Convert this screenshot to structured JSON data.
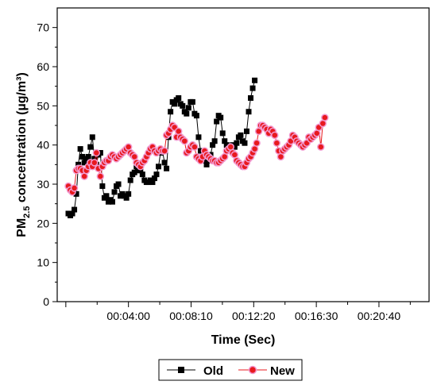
{
  "chart_data": {
    "type": "line",
    "xlabel": "Time (Sec)",
    "ylabel_main": "PM",
    "ylabel_sub": "2.5",
    "ylabel_rest": " concentration (µg/m³)",
    "x_unit": "seconds",
    "xlim": [
      0,
      1440
    ],
    "ylim": [
      0,
      75
    ],
    "yticks": [
      0,
      10,
      20,
      30,
      40,
      50,
      60,
      70
    ],
    "xticks": [
      {
        "value": 240,
        "label": "00:04:00"
      },
      {
        "value": 490,
        "label": "00:08:10"
      },
      {
        "value": 740,
        "label": "00:12:20"
      },
      {
        "value": 990,
        "label": "00:16:30"
      },
      {
        "value": 1240,
        "label": "00:20:40"
      }
    ],
    "legend": {
      "placement": "bottom-center"
    },
    "series": [
      {
        "name": "Old",
        "color": "#000000",
        "marker": "square",
        "points": [
          [
            0,
            22.5
          ],
          [
            8,
            22.0
          ],
          [
            16,
            22.5
          ],
          [
            24,
            23.5
          ],
          [
            32,
            27.5
          ],
          [
            40,
            35.0
          ],
          [
            48,
            39.0
          ],
          [
            56,
            37.0
          ],
          [
            64,
            35.5
          ],
          [
            72,
            36.5
          ],
          [
            80,
            37.0
          ],
          [
            88,
            39.5
          ],
          [
            96,
            42.0
          ],
          [
            104,
            36.5
          ],
          [
            112,
            35.0
          ],
          [
            120,
            37.5
          ],
          [
            128,
            38.0
          ],
          [
            136,
            29.5
          ],
          [
            144,
            26.5
          ],
          [
            152,
            27.0
          ],
          [
            160,
            25.5
          ],
          [
            168,
            26.0
          ],
          [
            176,
            25.5
          ],
          [
            184,
            28.0
          ],
          [
            192,
            29.5
          ],
          [
            200,
            30.0
          ],
          [
            208,
            27.0
          ],
          [
            216,
            27.5
          ],
          [
            224,
            27.0
          ],
          [
            232,
            26.5
          ],
          [
            240,
            27.5
          ],
          [
            248,
            31.0
          ],
          [
            256,
            32.5
          ],
          [
            264,
            33.0
          ],
          [
            272,
            34.5
          ],
          [
            280,
            33.5
          ],
          [
            288,
            33.5
          ],
          [
            296,
            32.5
          ],
          [
            304,
            31.0
          ],
          [
            312,
            30.5
          ],
          [
            320,
            30.5
          ],
          [
            328,
            31.0
          ],
          [
            336,
            30.5
          ],
          [
            344,
            31.5
          ],
          [
            352,
            32.5
          ],
          [
            360,
            34.5
          ],
          [
            368,
            38.0
          ],
          [
            376,
            38.5
          ],
          [
            384,
            35.5
          ],
          [
            392,
            34.0
          ],
          [
            400,
            42.0
          ],
          [
            408,
            48.5
          ],
          [
            416,
            51.0
          ],
          [
            424,
            50.5
          ],
          [
            432,
            51.5
          ],
          [
            440,
            52.0
          ],
          [
            448,
            50.5
          ],
          [
            456,
            50.0
          ],
          [
            464,
            48.5
          ],
          [
            472,
            48.0
          ],
          [
            480,
            49.5
          ],
          [
            488,
            51.0
          ],
          [
            496,
            51.0
          ],
          [
            504,
            48.0
          ],
          [
            512,
            47.5
          ],
          [
            520,
            42.0
          ],
          [
            528,
            38.5
          ],
          [
            536,
            36.5
          ],
          [
            544,
            36.0
          ],
          [
            552,
            35.0
          ],
          [
            560,
            36.0
          ],
          [
            568,
            37.5
          ],
          [
            576,
            40.0
          ],
          [
            584,
            41.0
          ],
          [
            592,
            46.0
          ],
          [
            600,
            47.5
          ],
          [
            608,
            47.0
          ],
          [
            616,
            43.0
          ],
          [
            624,
            41.0
          ],
          [
            632,
            40.0
          ],
          [
            640,
            39.5
          ],
          [
            648,
            39.5
          ],
          [
            656,
            40.0
          ],
          [
            664,
            39.5
          ],
          [
            672,
            40.5
          ],
          [
            680,
            42.0
          ],
          [
            688,
            42.5
          ],
          [
            696,
            41.0
          ],
          [
            704,
            40.5
          ],
          [
            712,
            43.5
          ],
          [
            720,
            48.5
          ],
          [
            728,
            52.0
          ],
          [
            736,
            54.5
          ],
          [
            744,
            56.5
          ]
        ]
      },
      {
        "name": "New",
        "color": "#e8191e",
        "marker": "circle",
        "points": [
          [
            0,
            29.5
          ],
          [
            8,
            28.5
          ],
          [
            16,
            28.0
          ],
          [
            24,
            29.0
          ],
          [
            32,
            33.5
          ],
          [
            40,
            34.0
          ],
          [
            48,
            34.0
          ],
          [
            56,
            33.5
          ],
          [
            64,
            32.0
          ],
          [
            72,
            33.5
          ],
          [
            80,
            34.5
          ],
          [
            88,
            35.5
          ],
          [
            96,
            34.5
          ],
          [
            104,
            35.5
          ],
          [
            112,
            38.0
          ],
          [
            120,
            34.0
          ],
          [
            128,
            32.0
          ],
          [
            136,
            34.5
          ],
          [
            144,
            35.5
          ],
          [
            152,
            36.0
          ],
          [
            160,
            36.0
          ],
          [
            168,
            37.0
          ],
          [
            176,
            37.5
          ],
          [
            184,
            37.0
          ],
          [
            192,
            36.5
          ],
          [
            200,
            37.0
          ],
          [
            208,
            37.5
          ],
          [
            216,
            38.0
          ],
          [
            224,
            38.5
          ],
          [
            232,
            39.0
          ],
          [
            240,
            39.5
          ],
          [
            248,
            38.0
          ],
          [
            256,
            37.5
          ],
          [
            264,
            37.0
          ],
          [
            272,
            35.5
          ],
          [
            280,
            35.0
          ],
          [
            288,
            34.5
          ],
          [
            296,
            35.5
          ],
          [
            304,
            36.0
          ],
          [
            312,
            37.0
          ],
          [
            320,
            38.0
          ],
          [
            328,
            39.0
          ],
          [
            336,
            39.5
          ],
          [
            344,
            38.5
          ],
          [
            352,
            38.0
          ],
          [
            360,
            38.5
          ],
          [
            368,
            39.0
          ],
          [
            376,
            38.5
          ],
          [
            384,
            38.5
          ],
          [
            392,
            42.5
          ],
          [
            400,
            43.0
          ],
          [
            408,
            44.0
          ],
          [
            416,
            45.0
          ],
          [
            424,
            44.5
          ],
          [
            432,
            42.0
          ],
          [
            440,
            43.5
          ],
          [
            448,
            42.0
          ],
          [
            456,
            41.5
          ],
          [
            464,
            41.0
          ],
          [
            472,
            38.0
          ],
          [
            480,
            38.5
          ],
          [
            488,
            39.5
          ],
          [
            496,
            40.0
          ],
          [
            504,
            39.5
          ],
          [
            512,
            37.0
          ],
          [
            520,
            36.5
          ],
          [
            528,
            36.0
          ],
          [
            536,
            37.0
          ],
          [
            544,
            38.5
          ],
          [
            552,
            37.5
          ],
          [
            560,
            37.0
          ],
          [
            568,
            36.5
          ],
          [
            576,
            36.0
          ],
          [
            584,
            36.0
          ],
          [
            592,
            35.5
          ],
          [
            600,
            35.5
          ],
          [
            608,
            36.0
          ],
          [
            616,
            36.5
          ],
          [
            624,
            37.0
          ],
          [
            632,
            38.5
          ],
          [
            640,
            39.0
          ],
          [
            648,
            39.5
          ],
          [
            656,
            38.0
          ],
          [
            664,
            37.5
          ],
          [
            672,
            36.0
          ],
          [
            680,
            35.5
          ],
          [
            688,
            35.0
          ],
          [
            696,
            34.5
          ],
          [
            704,
            34.5
          ],
          [
            712,
            35.5
          ],
          [
            720,
            36.5
          ],
          [
            728,
            37.0
          ],
          [
            736,
            38.0
          ],
          [
            744,
            39.0
          ],
          [
            752,
            40.5
          ],
          [
            760,
            43.5
          ],
          [
            768,
            45.0
          ],
          [
            776,
            45.0
          ],
          [
            784,
            44.5
          ],
          [
            792,
            44.0
          ],
          [
            800,
            43.0
          ],
          [
            808,
            44.0
          ],
          [
            816,
            43.5
          ],
          [
            824,
            42.5
          ],
          [
            832,
            40.5
          ],
          [
            840,
            38.5
          ],
          [
            848,
            37.0
          ],
          [
            856,
            38.5
          ],
          [
            864,
            39.0
          ],
          [
            872,
            39.5
          ],
          [
            880,
            40.0
          ],
          [
            888,
            41.0
          ],
          [
            896,
            42.5
          ],
          [
            904,
            42.0
          ],
          [
            912,
            41.0
          ],
          [
            920,
            40.5
          ],
          [
            928,
            40.0
          ],
          [
            936,
            39.5
          ],
          [
            944,
            40.0
          ],
          [
            952,
            40.5
          ],
          [
            960,
            42.0
          ],
          [
            968,
            41.5
          ],
          [
            976,
            42.0
          ],
          [
            984,
            42.5
          ],
          [
            992,
            43.0
          ],
          [
            1000,
            44.5
          ],
          [
            1008,
            39.5
          ],
          [
            1016,
            45.5
          ],
          [
            1024,
            47.0
          ]
        ]
      }
    ]
  }
}
